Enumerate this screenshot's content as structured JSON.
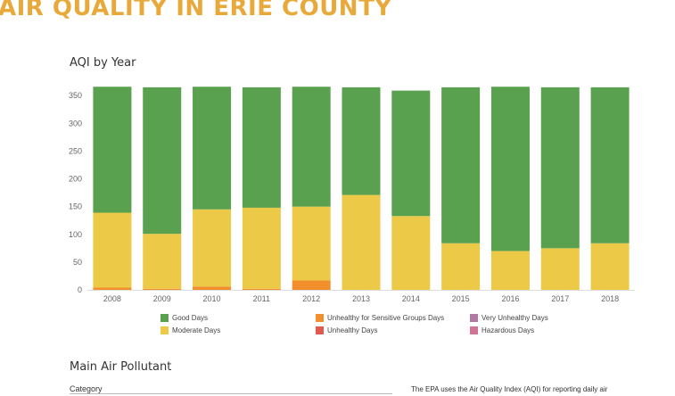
{
  "page": {
    "title": "AIR QUALITY IN ERIE COUNTY",
    "title_color": "#e8a93a"
  },
  "chart_data": {
    "type": "bar",
    "stacked": true,
    "title": "AQI by Year",
    "xlabel": "",
    "ylabel": "",
    "ylim": [
      0,
      368
    ],
    "yticks": [
      0,
      50,
      100,
      150,
      200,
      250,
      300,
      350
    ],
    "grid": false,
    "legend_position": "bottom",
    "categories": [
      "2008",
      "2009",
      "2010",
      "2011",
      "2012",
      "2013",
      "2014",
      "2015",
      "2016",
      "2017",
      "2018"
    ],
    "series": [
      {
        "name": "Unhealthy Days",
        "color": "#e05a4f",
        "values": [
          0,
          0,
          0,
          0,
          0,
          0,
          0,
          0,
          0,
          0,
          0
        ]
      },
      {
        "name": "Unhealthy for Sensitive Groups Days",
        "color": "#f28e2b",
        "values": [
          4,
          2,
          6,
          2,
          17,
          0,
          0,
          0,
          0,
          0,
          0
        ]
      },
      {
        "name": "Moderate Days",
        "color": "#edc948",
        "values": [
          135,
          99,
          139,
          146,
          133,
          171,
          133,
          84,
          70,
          75,
          84
        ]
      },
      {
        "name": "Good Days",
        "color": "#59a14f",
        "values": [
          227,
          264,
          221,
          217,
          216,
          194,
          226,
          281,
          296,
          290,
          281
        ]
      },
      {
        "name": "Very Unhealthy Days",
        "color": "#b07aa1",
        "values": [
          0,
          0,
          0,
          0,
          0,
          0,
          0,
          0,
          0,
          0,
          0
        ]
      },
      {
        "name": "Hazardous Days",
        "color": "#d37295",
        "values": [
          0,
          0,
          0,
          0,
          0,
          0,
          0,
          0,
          0,
          0,
          0
        ]
      }
    ],
    "legend": [
      {
        "label": "Good Days",
        "color": "#59a14f"
      },
      {
        "label": "Moderate Days",
        "color": "#edc948"
      },
      {
        "label": "Unhealthy for Sensitive Groups Days",
        "color": "#f28e2b"
      },
      {
        "label": "Unhealthy Days",
        "color": "#e05a4f"
      },
      {
        "label": "Very Unhealthy Days",
        "color": "#b07aa1"
      },
      {
        "label": "Hazardous Days",
        "color": "#d37295"
      }
    ]
  },
  "pollutant_section": {
    "title": "Main Air Pollutant",
    "column_header": "Category",
    "note": "The EPA uses the Air Quality Index (AQI) for reporting daily air"
  }
}
